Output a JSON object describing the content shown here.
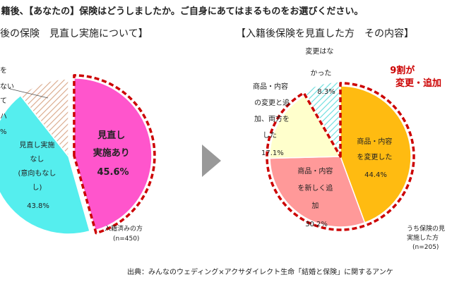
{
  "header": {
    "question": "籍後、【あなたの】保険はどうしましたか。ご自身にあてはまるものをお選びください。"
  },
  "source_note": "出典：みんなのウェディング×アクサダイレクト生命「結婚と保険」に関するアンケ",
  "arrow_icon": "play-arrow-icon",
  "colors": {
    "pink": "#ff55cc",
    "cyan": "#55eeee",
    "peach": "#f6d2bc",
    "orange": "#ffbb11",
    "salmon": "#ff9999",
    "lightyellow": "#ffffcc",
    "lightcyan": "#ccf7f7",
    "red_accent": "#cc0000",
    "arrow_gray": "#999999"
  },
  "chart_data": [
    {
      "type": "pie",
      "title": "後の保険　見直し実施について】",
      "base_note": [
        "入籍済みの方",
        "(n=450)"
      ],
      "slices": [
        {
          "label_lines": [
            "見直し",
            "実施あり",
            "45.6%"
          ],
          "value": 45.6,
          "color": "#ff55cc",
          "bold": true
        },
        {
          "label_lines": [
            "見直し実施",
            "なし",
            "(意向もなし",
            "し)",
            "43.8%"
          ],
          "value": 43.8,
          "color": "#55eeee",
          "bold": false
        },
        {
          "label_lines": [
            "を",
            "ない",
            "て",
            "ハ",
            "%"
          ],
          "value": 10.6,
          "color": "#f6d2bc",
          "bold": false,
          "hatched": true
        }
      ]
    },
    {
      "type": "pie",
      "title": "【入籍後保険を見直した方　その内容】",
      "base_note": [
        "うち保険の見",
        "実施した方",
        "(n=205)"
      ],
      "callout": [
        "9割が",
        "変更・追加"
      ],
      "slices": [
        {
          "label_lines": [
            "商品・内容",
            "を変更した",
            "44.4%"
          ],
          "value": 44.4,
          "color": "#ffbb11"
        },
        {
          "label_lines": [
            "商品・内容",
            "を新しく追",
            "加",
            "30.2%"
          ],
          "value": 30.2,
          "color": "#ff9999"
        },
        {
          "label_lines": [
            "商品・内容",
            "の変更と追",
            "加、両方を",
            "した",
            "17.1%"
          ],
          "value": 17.1,
          "color": "#ffffcc"
        },
        {
          "label_lines": [
            "変更はな",
            "かった",
            "8.3%"
          ],
          "value": 8.3,
          "color": "#ccf7f7",
          "hatched": true
        }
      ]
    }
  ]
}
